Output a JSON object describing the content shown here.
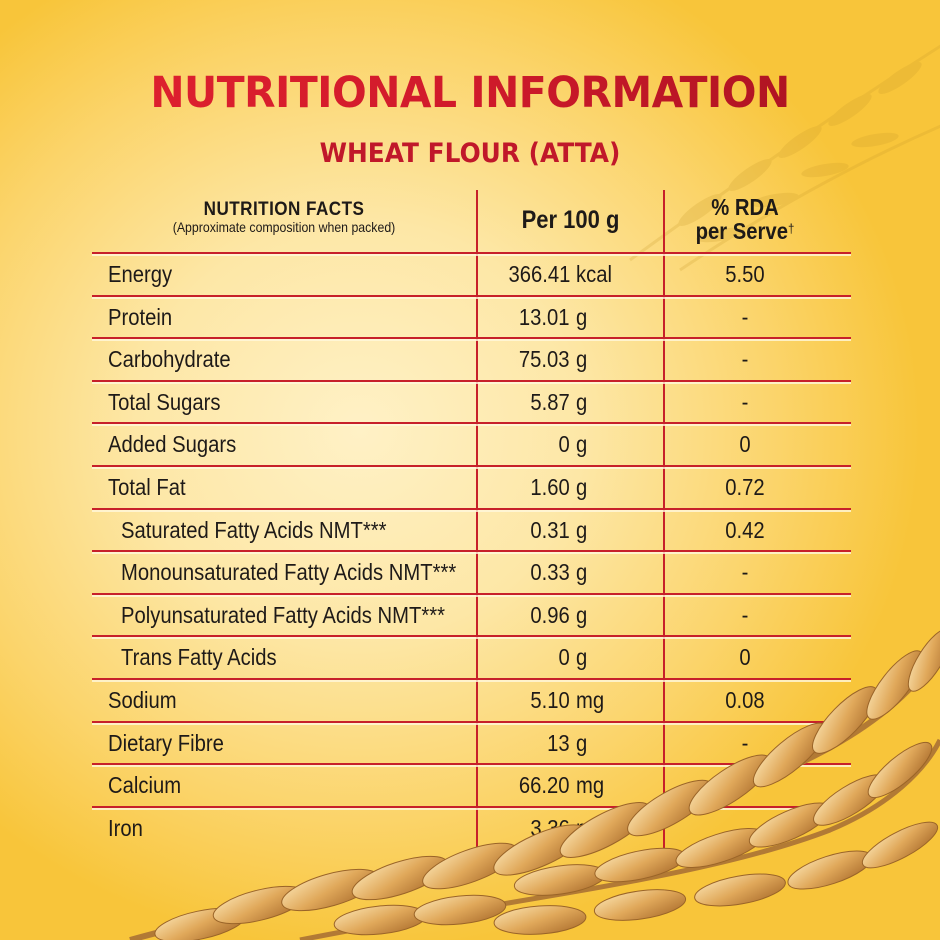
{
  "title": "NUTRITIONAL INFORMATION",
  "subtitle": "WHEAT FLOUR (ATTA)",
  "colors": {
    "title_red": "#d01a2b",
    "rule_red": "#c7202a",
    "text_dark": "#1e1a18",
    "bg_light": "#fff1c6",
    "bg_deep": "#f8c53a"
  },
  "table": {
    "header": {
      "facts_title": "NUTRITION FACTS",
      "facts_note": "(Approximate composition when packed)",
      "per_100g": "Per 100 g",
      "rda_line1": "% RDA",
      "rda_line2": "per Serve",
      "rda_dagger": "†"
    },
    "rows": [
      {
        "label": "Energy",
        "value": "366.41",
        "unit": "kcal",
        "rda": "5.50",
        "indent": false
      },
      {
        "label": "Protein",
        "value": "13.01",
        "unit": "g",
        "rda": "-",
        "indent": false
      },
      {
        "label": "Carbohydrate",
        "value": "75.03",
        "unit": "g",
        "rda": "-",
        "indent": false
      },
      {
        "label": "Total Sugars",
        "value": "5.87",
        "unit": "g",
        "rda": "-",
        "indent": false
      },
      {
        "label": "Added Sugars",
        "value": "0",
        "unit": "g",
        "rda": "0",
        "indent": false
      },
      {
        "label": "Total Fat",
        "value": "1.60",
        "unit": "g",
        "rda": "0.72",
        "indent": false
      },
      {
        "label": "Saturated Fatty Acids NMT***",
        "value": "0.31",
        "unit": "g",
        "rda": "0.42",
        "indent": true
      },
      {
        "label": "Monounsaturated Fatty Acids NMT***",
        "value": "0.33",
        "unit": "g",
        "rda": "-",
        "indent": true
      },
      {
        "label": "Polyunsaturated Fatty Acids NMT***",
        "value": "0.96",
        "unit": "g",
        "rda": "-",
        "indent": true
      },
      {
        "label": "Trans Fatty Acids",
        "value": "0",
        "unit": "g",
        "rda": "0",
        "indent": true
      },
      {
        "label": "Sodium",
        "value": "5.10",
        "unit": "mg",
        "rda": "0.08",
        "indent": false
      },
      {
        "label": "Dietary Fibre",
        "value": "13",
        "unit": "g",
        "rda": "-",
        "indent": false
      },
      {
        "label": "Calcium",
        "value": "66.20",
        "unit": "mg",
        "rda": "-",
        "indent": false
      },
      {
        "label": "Iron",
        "value": "3.36",
        "unit": "mg",
        "rda": "-",
        "indent": false
      }
    ]
  },
  "decorations": [
    "wheat-ear-icon"
  ]
}
